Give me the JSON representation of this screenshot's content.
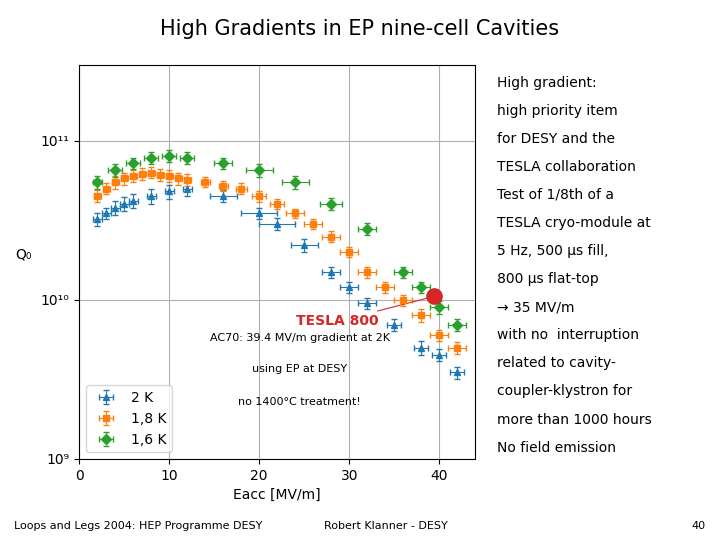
{
  "chart_data": {
    "type": "scatter",
    "title": "High Gradients in EP nine-cell Cavities",
    "x_label": "Eacc [MV/m]",
    "y_label": "Q₀",
    "log": "y",
    "xlim": [
      0,
      44
    ],
    "xticks": [
      0,
      10,
      20,
      30,
      40
    ],
    "ylim": [
      1000000000.0,
      300000000000.0
    ],
    "yticks": [
      {
        "value": 1000000000.0,
        "label": "10⁹"
      },
      {
        "value": 10000000000.0,
        "label": "10¹⁰"
      },
      {
        "value": 100000000000.0,
        "label": "10¹¹"
      }
    ],
    "grid": true,
    "legend": "lower left",
    "series": [
      {
        "name": "2 K",
        "marker": "triangle",
        "x": [
          2,
          3,
          4,
          5,
          6,
          8,
          10,
          12,
          16,
          20,
          22,
          25,
          28,
          30,
          32,
          35,
          38,
          40,
          42
        ],
        "values": [
          32000000000.0,
          35000000000.0,
          38000000000.0,
          40000000000.0,
          42000000000.0,
          45000000000.0,
          48000000000.0,
          50000000000.0,
          45000000000.0,
          35000000000.0,
          30000000000.0,
          22000000000.0,
          15000000000.0,
          12000000000.0,
          9500000000.0,
          7000000000.0,
          5000000000.0,
          4500000000.0,
          3500000000.0
        ],
        "xerr": [
          0.5,
          0.5,
          0.5,
          0.5,
          0.5,
          0.5,
          0.5,
          0.5,
          1.5,
          2.0,
          2.0,
          1.5,
          1.0,
          1.0,
          1.0,
          0.8,
          0.8,
          0.8,
          0.8
        ],
        "yerr_low": [
          3000000000.0,
          3000000000.0,
          4000000000.0,
          4000000000.0,
          4000000000.0,
          5000000000.0,
          5000000000.0,
          5000000000.0,
          4000000000.0,
          3000000000.0,
          2500000000.0,
          2000000000.0,
          1200000000.0,
          1000000000.0,
          800000000.0,
          600000000.0,
          500000000.0,
          400000000.0,
          300000000.0
        ],
        "yerr_high": [
          3000000000.0,
          3000000000.0,
          4000000000.0,
          4000000000.0,
          4000000000.0,
          5000000000.0,
          5000000000.0,
          5000000000.0,
          4000000000.0,
          3000000000.0,
          2500000000.0,
          2000000000.0,
          1200000000.0,
          1000000000.0,
          800000000.0,
          600000000.0,
          500000000.0,
          400000000.0,
          300000000.0
        ]
      },
      {
        "name": "1,8 K",
        "marker": "square",
        "x": [
          2,
          3,
          4,
          5,
          6,
          7,
          8,
          9,
          10,
          11,
          12,
          14,
          16,
          18,
          20,
          22,
          24,
          26,
          28,
          30,
          32,
          34,
          36,
          38,
          40,
          42
        ],
        "values": [
          45000000000.0,
          50000000000.0,
          55000000000.0,
          58000000000.0,
          60000000000.0,
          62000000000.0,
          63000000000.0,
          61000000000.0,
          60000000000.0,
          58000000000.0,
          57000000000.0,
          55000000000.0,
          52000000000.0,
          50000000000.0,
          45000000000.0,
          40000000000.0,
          35000000000.0,
          30000000000.0,
          25000000000.0,
          20000000000.0,
          15000000000.0,
          12000000000.0,
          10000000000.0,
          8000000000.0,
          6000000000.0,
          5000000000.0
        ],
        "xerr": [
          0.4,
          0.4,
          0.4,
          0.4,
          0.4,
          0.4,
          0.4,
          0.4,
          0.4,
          0.4,
          0.4,
          0.5,
          0.5,
          0.6,
          0.8,
          0.8,
          1.0,
          1.0,
          1.0,
          1.0,
          1.0,
          1.0,
          1.0,
          1.0,
          1.0,
          1.0
        ],
        "yerr_low": [
          4000000000.0,
          4000000000.0,
          5000000000.0,
          5000000000.0,
          5000000000.0,
          5000000000.0,
          5000000000.0,
          5000000000.0,
          5000000000.0,
          5000000000.0,
          5000000000.0,
          4000000000.0,
          4000000000.0,
          4000000000.0,
          3500000000.0,
          3000000000.0,
          2500000000.0,
          2000000000.0,
          2000000000.0,
          1500000000.0,
          1200000000.0,
          1000000000.0,
          800000000.0,
          700000000.0,
          500000000.0,
          400000000.0
        ],
        "yerr_high": [
          4000000000.0,
          4000000000.0,
          5000000000.0,
          5000000000.0,
          5000000000.0,
          5000000000.0,
          5000000000.0,
          5000000000.0,
          5000000000.0,
          5000000000.0,
          5000000000.0,
          4000000000.0,
          4000000000.0,
          4000000000.0,
          3500000000.0,
          3000000000.0,
          2500000000.0,
          2000000000.0,
          2000000000.0,
          1500000000.0,
          1200000000.0,
          1000000000.0,
          800000000.0,
          700000000.0,
          500000000.0,
          400000000.0
        ]
      },
      {
        "name": "1,6 K",
        "marker": "diamond",
        "x": [
          2,
          4,
          6,
          8,
          10,
          12,
          16,
          20,
          24,
          28,
          32,
          36,
          38,
          40,
          42
        ],
        "values": [
          55000000000.0,
          65000000000.0,
          72000000000.0,
          78000000000.0,
          80000000000.0,
          78000000000.0,
          72000000000.0,
          65000000000.0,
          55000000000.0,
          40000000000.0,
          28000000000.0,
          15000000000.0,
          12000000000.0,
          9000000000.0,
          7000000000.0
        ],
        "xerr": [
          0.5,
          0.8,
          0.8,
          0.8,
          0.8,
          0.8,
          1.0,
          1.5,
          1.5,
          1.2,
          1.0,
          1.0,
          1.0,
          1.0,
          1.0
        ],
        "yerr_low": [
          5000000000.0,
          6000000000.0,
          6000000000.0,
          7000000000.0,
          7000000000.0,
          7000000000.0,
          6000000000.0,
          6000000000.0,
          5000000000.0,
          3500000000.0,
          2500000000.0,
          1200000000.0,
          1000000000.0,
          800000000.0,
          600000000.0
        ],
        "yerr_high": [
          5000000000.0,
          6000000000.0,
          6000000000.0,
          7000000000.0,
          7000000000.0,
          7000000000.0,
          6000000000.0,
          6000000000.0,
          5000000000.0,
          3500000000.0,
          2500000000.0,
          1200000000.0,
          1000000000.0,
          800000000.0,
          600000000.0
        ]
      }
    ],
    "highlight": {
      "label": "TESLA 800",
      "x": 39.4,
      "y": 10500000000.0
    },
    "annotations": [
      {
        "text": "AC70: 39.4 MV/m gradient at 2K",
        "x": 24.5,
        "y": 5500000000.0
      },
      {
        "text": "using EP at DESY",
        "x": 24.5,
        "y": 3500000000.0
      },
      {
        "text": "no 1400°C treatment!",
        "x": 24.5,
        "y": 2200000000.0
      }
    ],
    "side_notes": [
      "High gradient:",
      "high priority item",
      "for DESY and the",
      "TESLA collaboration",
      "Test of 1/8th of a",
      "TESLA cryo-module at",
      "5 Hz, 500 μs fill,",
      "800 μs flat-top",
      "→ 35 MV/m",
      "with no  interruption",
      "related to cavity-",
      "coupler-klystron for",
      "more than 1000 hours",
      "No field emission"
    ],
    "footer": [
      "Loops and Legs 2004: HEP Programme DESY",
      "Robert Klanner - DESY",
      "40"
    ]
  }
}
